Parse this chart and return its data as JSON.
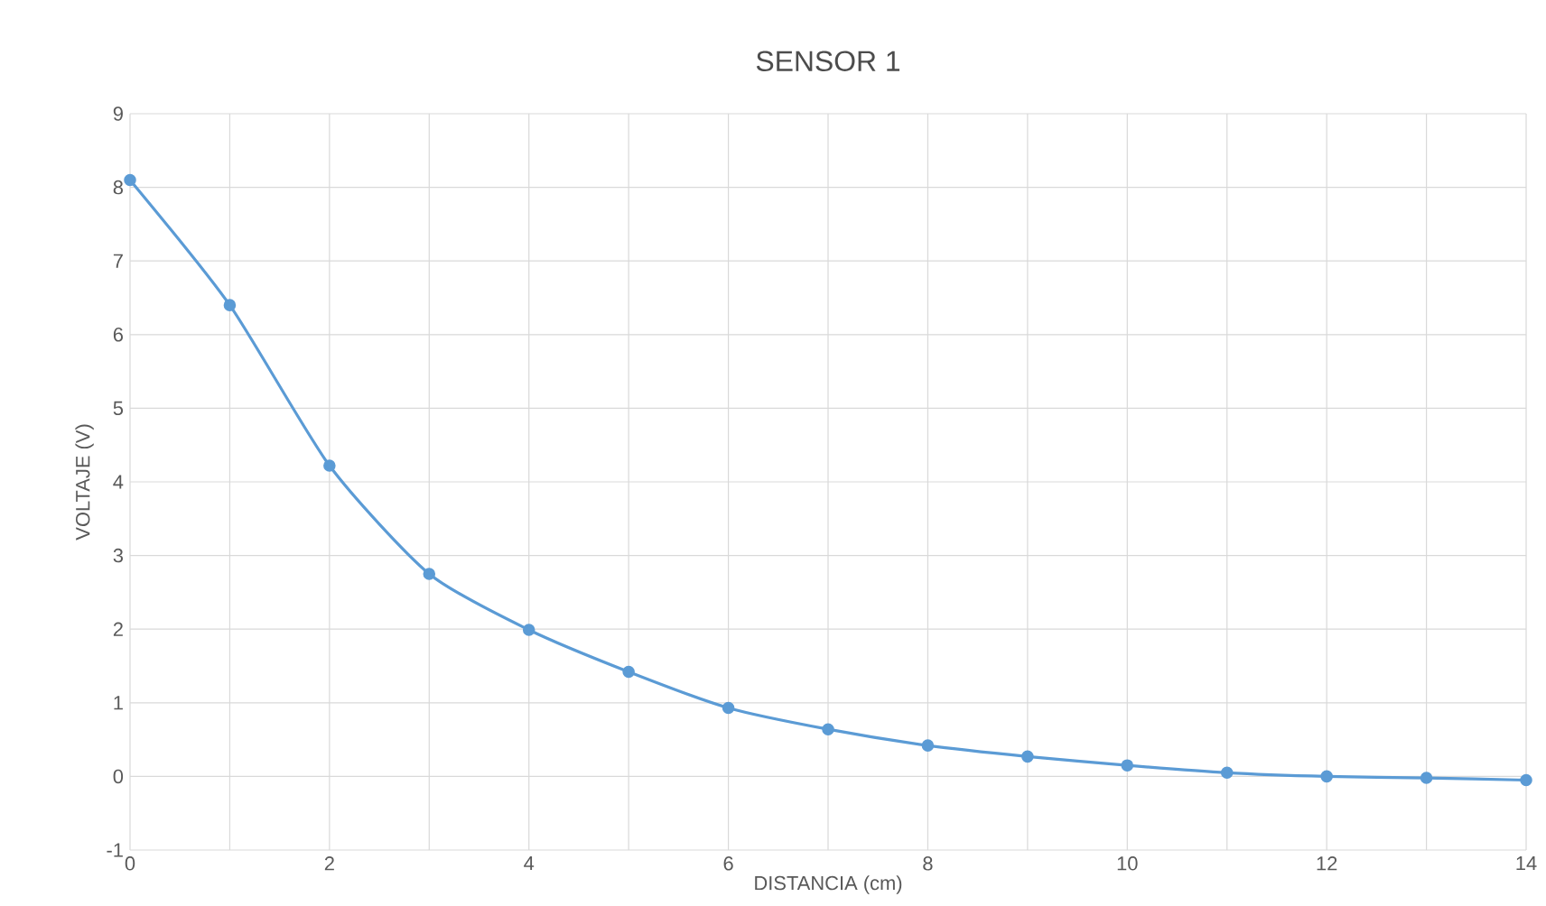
{
  "chart_data": {
    "type": "line",
    "title": "SENSOR 1",
    "xlabel": "DISTANCIA (cm)",
    "ylabel": "VOLTAJE (V)",
    "x": [
      0,
      1,
      2,
      3,
      4,
      5,
      6,
      7,
      8,
      9,
      10,
      11,
      12,
      13,
      14
    ],
    "series": [
      {
        "color": "#5b9bd5",
        "values": [
          8.1,
          6.4,
          4.22,
          2.75,
          1.99,
          1.42,
          0.93,
          0.64,
          0.42,
          0.27,
          0.15,
          0.05,
          0,
          -0.02,
          -0.05
        ]
      }
    ],
    "xlim": [
      0,
      14
    ],
    "ylim": [
      -1,
      9
    ],
    "xticks": [
      0,
      {
        "value": 1,
        "label": null
      },
      2,
      {
        "value": 3,
        "label": null
      },
      4,
      {
        "value": 5,
        "label": null
      },
      6,
      {
        "value": 7,
        "label": null
      },
      8,
      {
        "value": 9,
        "label": null
      },
      10,
      {
        "value": 11,
        "label": null
      },
      12,
      {
        "value": 13,
        "label": null
      },
      14
    ],
    "yticks": [
      -1,
      0,
      1,
      2,
      3,
      4,
      5,
      6,
      7,
      8,
      9
    ],
    "grid": true,
    "marker": "circle",
    "line_style": "solid"
  }
}
